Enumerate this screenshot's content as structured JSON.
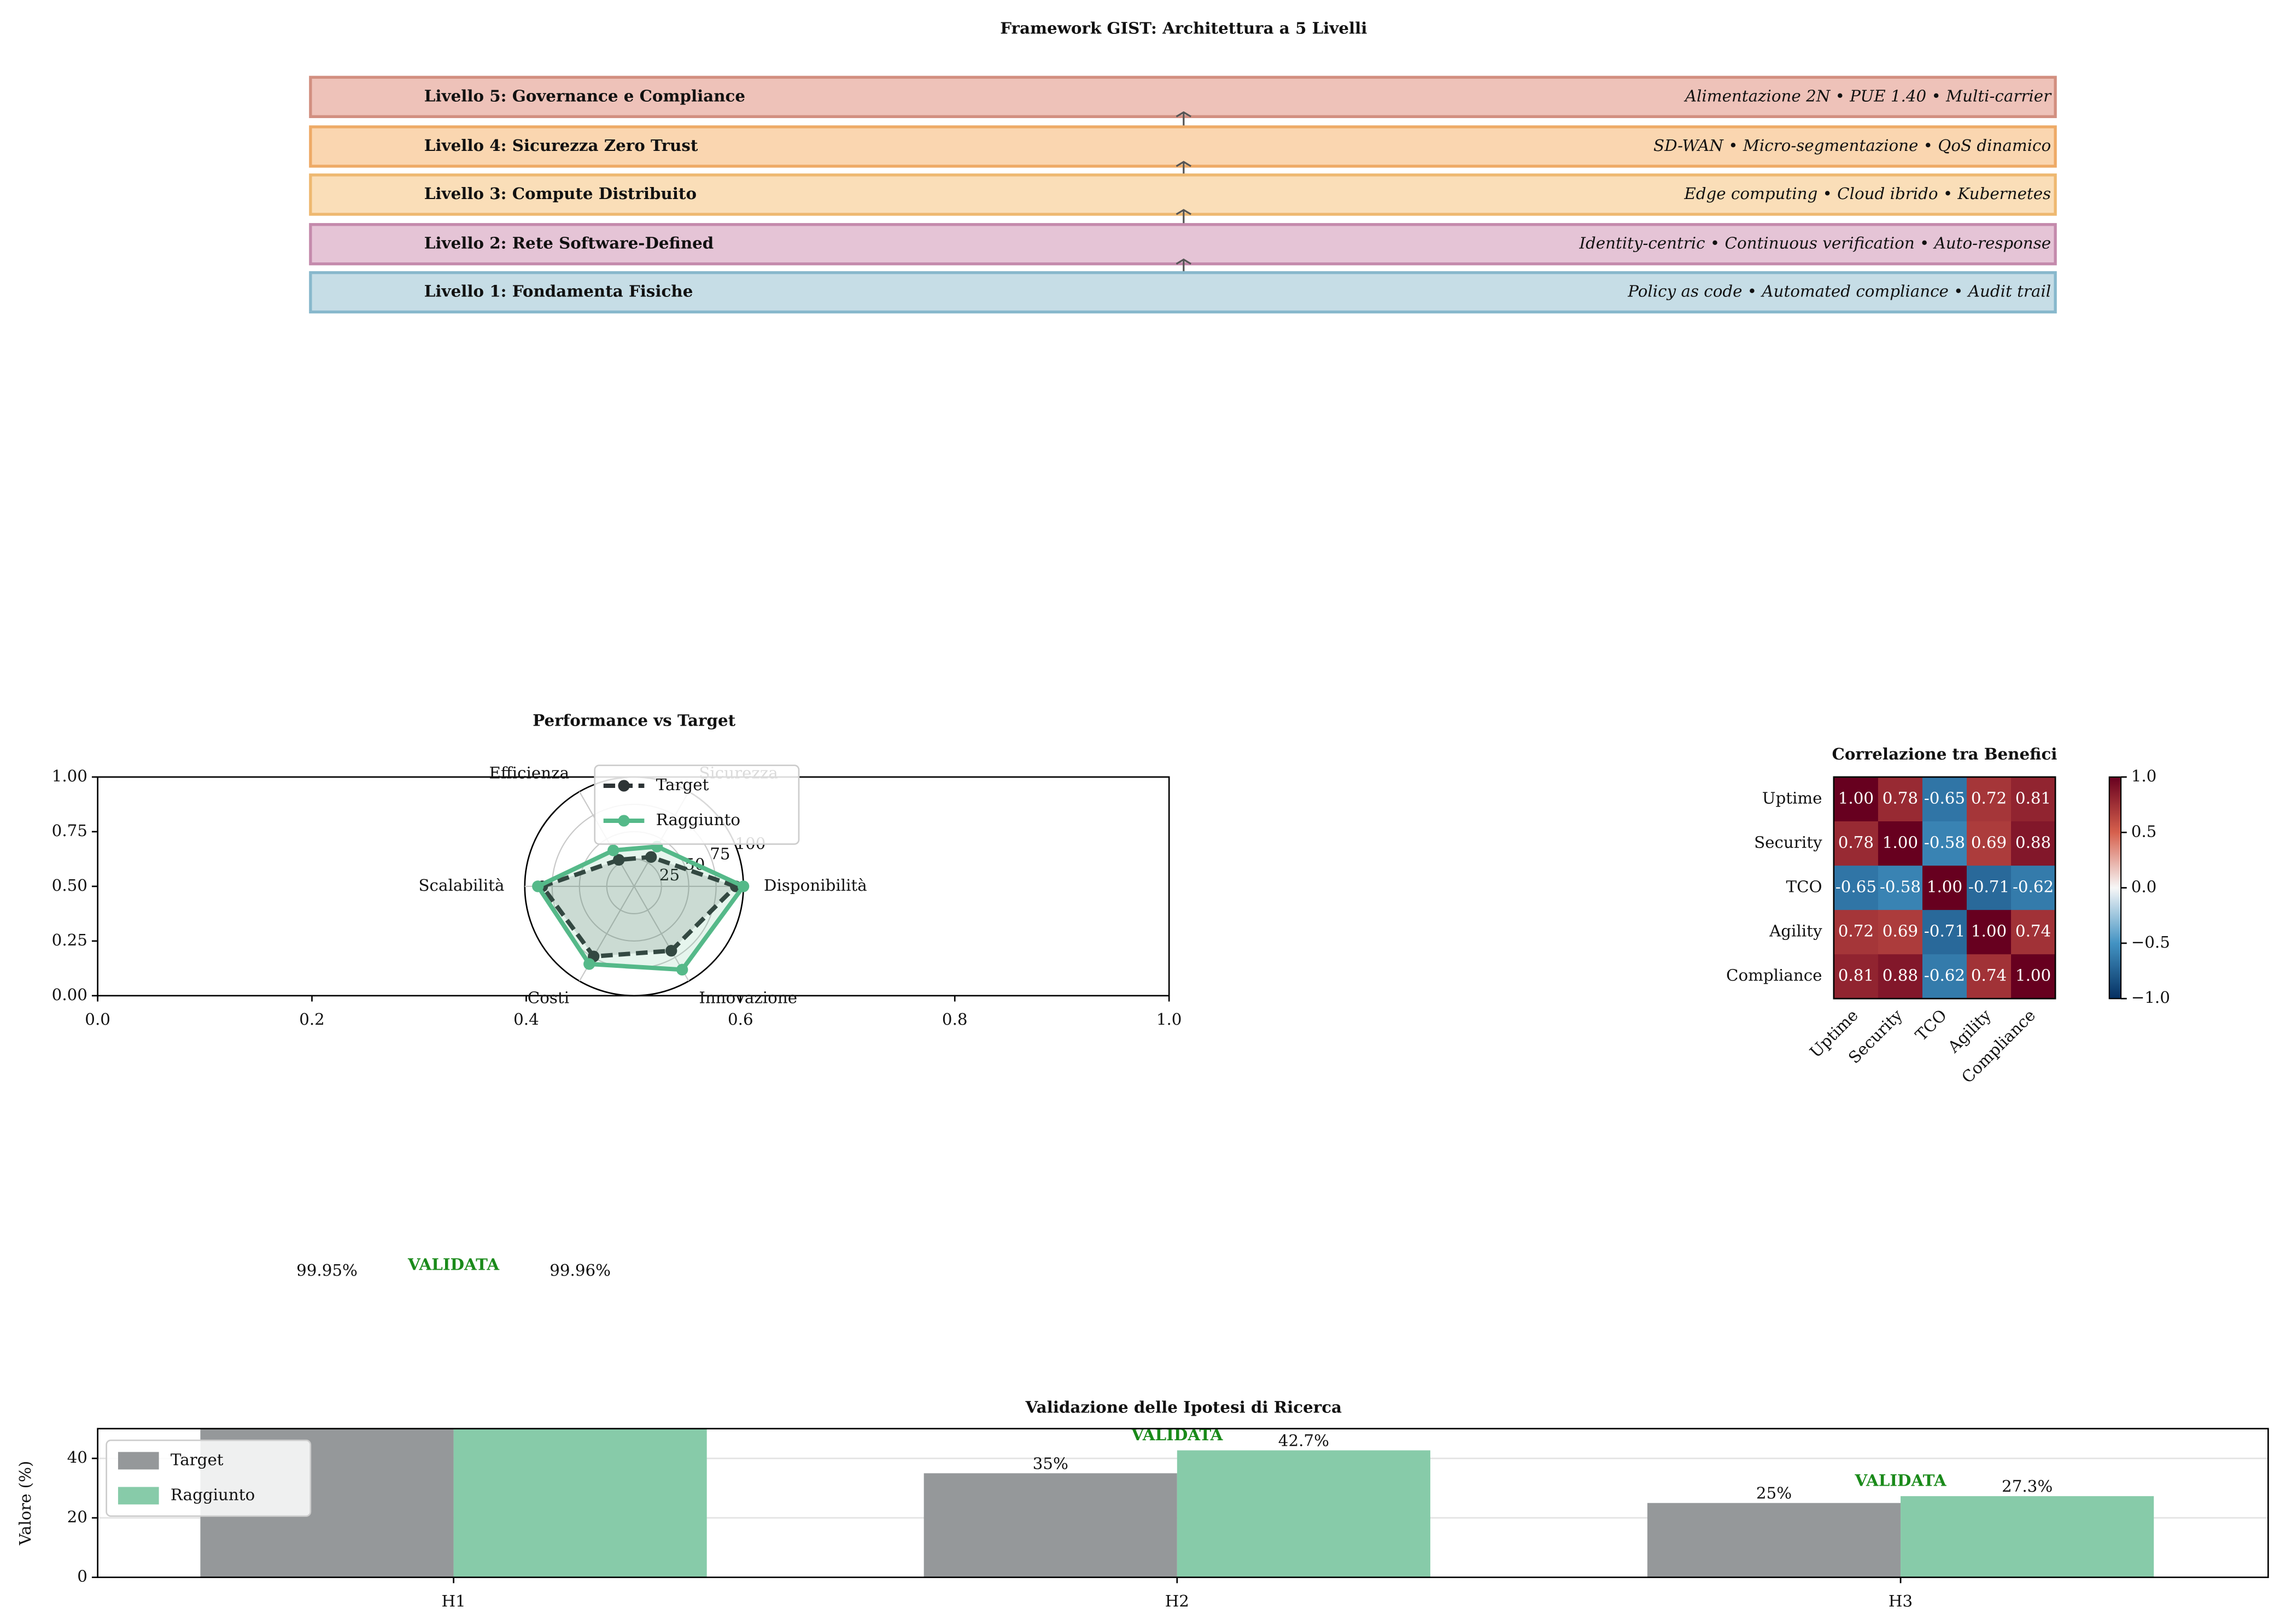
{
  "title": "Framework GIST: Architettura a 5 Livelli",
  "layers": [
    {
      "label": "Livello 5: Governance e Compliance",
      "detail": "Alimentazione 2N • PUE 1.40 • Multi-carrier",
      "color": "#e8ada2",
      "border": "#d28f80"
    },
    {
      "label": "Livello 4: Sicurezza Zero Trust",
      "detail": "SD-WAN • Micro-segmentazione • QoS dinamico",
      "color": "#f8c896",
      "border": "#eeaa66"
    },
    {
      "label": "Livello 3: Compute Distribuito",
      "detail": "Edge computing • Cloud ibrido • Kubernetes",
      "color": "#f8d3a0",
      "border": "#eeb870"
    },
    {
      "label": "Livello 2: Rete Software-Defined",
      "detail": "Identity-centric • Continuous verification • Auto-response",
      "color": "#dcb0c8",
      "border": "#c48aac"
    },
    {
      "label": "Livello 1: Fondamenta Fisiche",
      "detail": "Policy as code • Automated compliance • Audit trail",
      "color": "#b3d2de",
      "border": "#88b8cc"
    }
  ],
  "chart_data": [
    {
      "type": "radar",
      "title": "Performance vs Target",
      "categories": [
        "Disponibilità",
        "Sicurezza",
        "Efficienza",
        "Scalabilità",
        "Costi",
        "Innovazione"
      ],
      "rlim": [
        0,
        100
      ],
      "rticks": [
        25,
        50,
        75,
        100
      ],
      "series": [
        {
          "name": "Target",
          "color": "#2d3436",
          "values": [
            93,
            31,
            28,
            84,
            74,
            68
          ]
        },
        {
          "name": "Raggiunto",
          "color": "#55b989",
          "values": [
            100,
            42,
            38,
            88,
            82,
            88
          ]
        }
      ],
      "xlim": [
        0,
        1
      ],
      "xticks": [
        {
          "value": 0,
          "label": "0.0"
        },
        0.2,
        0.4,
        0.6,
        0.8,
        {
          "value": 1,
          "label": "1.0"
        }
      ],
      "ylim": [
        0,
        1
      ],
      "yticks": [
        {
          "value": 0,
          "label": "0.00"
        },
        0.25,
        {
          "value": 0.5,
          "label": "0.50"
        },
        0.75,
        {
          "value": 1,
          "label": "1.00"
        }
      ]
    },
    {
      "type": "heatmap",
      "title": "Correlazione tra Benefici",
      "categories": [
        "Uptime",
        "Security",
        "TCO",
        "Agility",
        "Compliance"
      ],
      "values": [
        [
          1.0,
          0.78,
          -0.65,
          0.72,
          0.81
        ],
        [
          0.78,
          1.0,
          -0.58,
          0.69,
          0.88
        ],
        [
          -0.65,
          -0.58,
          1.0,
          -0.71,
          -0.62
        ],
        [
          0.72,
          0.69,
          -0.71,
          1.0,
          0.74
        ],
        [
          0.81,
          0.88,
          -0.62,
          0.74,
          1.0
        ]
      ],
      "value_labels": [
        [
          "1.00",
          "0.78",
          "-0.65",
          "0.72",
          "0.81"
        ],
        [
          "0.78",
          "1.00",
          "-0.58",
          "0.69",
          "0.88"
        ],
        [
          "-0.65",
          "-0.58",
          "1.00",
          "-0.71",
          "-0.62"
        ],
        [
          "0.72",
          "0.69",
          "-0.71",
          "1.00",
          "0.74"
        ],
        [
          "0.81",
          "0.88",
          "-0.62",
          "0.74",
          "1.00"
        ]
      ],
      "clim": [
        -1,
        1
      ],
      "cticks": [
        {
          "value": -1,
          "label": "−1.0"
        },
        {
          "value": -0.5,
          "label": "−0.5"
        },
        {
          "value": 0,
          "label": "0.0"
        },
        0.5,
        {
          "value": 1,
          "label": "1.0"
        }
      ]
    },
    {
      "type": "bar",
      "title": "Validazione delle Ipotesi di Ricerca",
      "ylabel": "Valore (%)",
      "categories": [
        "H1",
        "H2",
        "H3"
      ],
      "series": [
        {
          "name": "Target",
          "color": "#95989a",
          "values": [
            99.95,
            35,
            25
          ],
          "value_labels": [
            "99.95%",
            "35%",
            "25%"
          ]
        },
        {
          "name": "Raggiunto",
          "color": "#87cba9",
          "values": [
            99.96,
            42.7,
            27.3
          ],
          "value_labels": [
            "99.96%",
            "42.7%",
            "27.3%"
          ]
        }
      ],
      "annotations": [
        "VALIDATA",
        "VALIDATA",
        "VALIDATA"
      ],
      "annotation_color": "#1a8a1a",
      "ylim": [
        0,
        50
      ],
      "yticks": [
        0,
        20,
        40
      ],
      "grid": true,
      "legend": "upper left"
    }
  ]
}
